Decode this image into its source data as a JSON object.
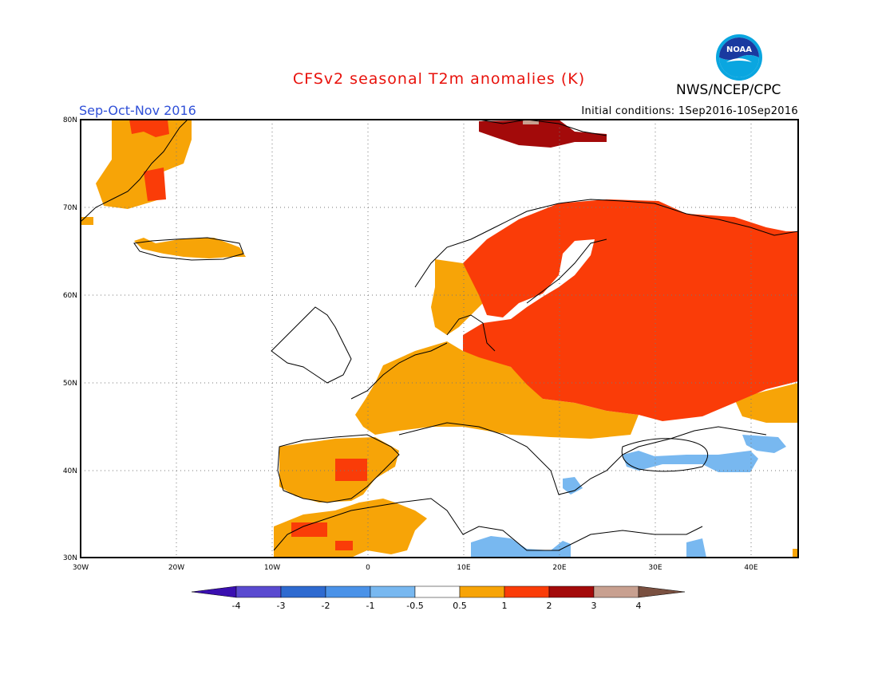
{
  "title": "CFSv2 seasonal T2m anomalies (K)",
  "agency": "NWS/NCEP/CPC",
  "logo_text": "NOAA",
  "season": "Sep-Oct-Nov 2016",
  "initial_conditions": "Initial conditions: 1Sep2016-10Sep2016",
  "map": {
    "lon_range": [
      -30,
      45
    ],
    "lat_range": [
      30,
      80
    ],
    "lon_ticks": [
      "30W",
      "20W",
      "10W",
      "0",
      "10E",
      "20E",
      "30E",
      "40E"
    ],
    "lat_ticks": [
      "30N",
      "40N",
      "50N",
      "60N",
      "70N",
      "80N"
    ],
    "grid": "dotted",
    "anomaly_regions": [
      {
        "name": "Greenland east coast",
        "class": "0.5-1"
      },
      {
        "name": "Iceland",
        "class": "0.5-1"
      },
      {
        "name": "Svalbard",
        "class": "2-3"
      },
      {
        "name": "Scandinavia",
        "class": "1-2"
      },
      {
        "name": "Eastern Europe and western Russia",
        "class": "1-2"
      },
      {
        "name": "Western and central Europe",
        "class": "0.5-1"
      },
      {
        "name": "Iberian Peninsula",
        "class": "0.5-1"
      },
      {
        "name": "Northwest Africa",
        "class": "0.5-1"
      },
      {
        "name": "Black Sea area",
        "class": "-1--0.5"
      },
      {
        "name": "Central Mediterranean / Libya coast",
        "class": "-1--0.5"
      }
    ]
  },
  "colorbar": {
    "labels": [
      "-4",
      "-3",
      "-2",
      "-1",
      "-0.5",
      "0.5",
      "1",
      "2",
      "3",
      "4"
    ],
    "colors": [
      "#3a0fb0",
      "#5a4ad0",
      "#2e6ad0",
      "#4a92e8",
      "#78b8f0",
      "#ffffff",
      "#f7a407",
      "#fa3c08",
      "#a30a0a",
      "#c8a090",
      "#7a5040"
    ]
  },
  "colors": {
    "title": "#e8120c",
    "season": "#3050d8",
    "warm_0p5": "#f7a407",
    "warm_1": "#fa3c08",
    "warm_2": "#a30a0a",
    "cool_0p5": "#78b8f0"
  }
}
